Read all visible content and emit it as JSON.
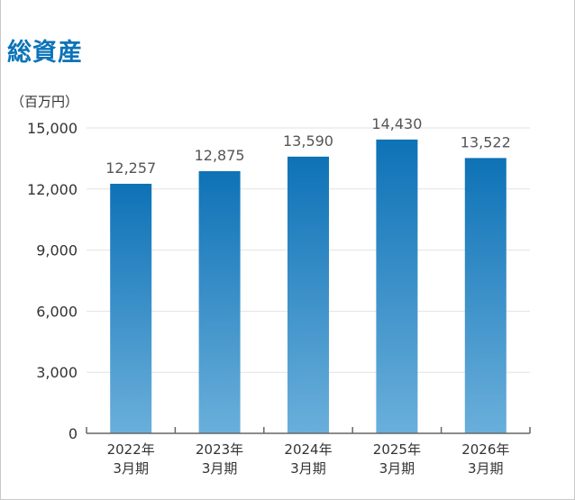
{
  "chart_data": {
    "type": "bar",
    "title": "総資産",
    "unit_label": "（百万円）",
    "categories": [
      [
        "2022年",
        "3月期"
      ],
      [
        "2023年",
        "3月期"
      ],
      [
        "2024年",
        "3月期"
      ],
      [
        "2025年",
        "3月期"
      ],
      [
        "2026年",
        "3月期"
      ]
    ],
    "values": [
      12257,
      12875,
      13590,
      14430,
      13522
    ],
    "value_labels": [
      "12,257",
      "12,875",
      "13,590",
      "14,430",
      "13,522"
    ],
    "yticks": [
      0,
      3000,
      6000,
      9000,
      12000,
      15000
    ],
    "ytick_labels": [
      "0",
      "3,000",
      "6,000",
      "9,000",
      "12,000",
      "15,000"
    ],
    "ylim": [
      0,
      15000
    ],
    "grid": true,
    "colors": {
      "bar_top": "#0e72b6",
      "bar_bottom": "#6aafdb",
      "title": "#0b73b8",
      "axis": "#666666",
      "grid": "#e2e2e2",
      "text": "#333333",
      "value_text": "#555555"
    }
  }
}
